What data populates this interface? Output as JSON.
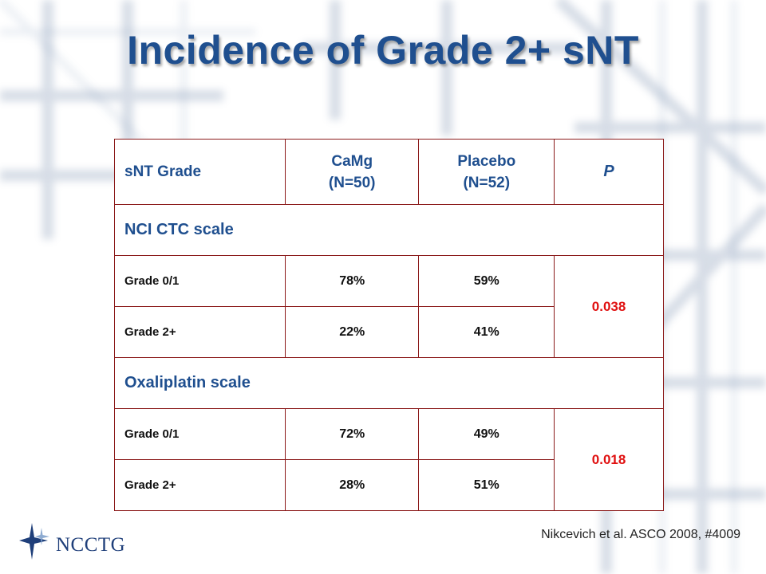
{
  "title": "Incidence of Grade 2+ sNT",
  "table": {
    "header": {
      "col1": "sNT Grade",
      "col2_line1": "CaMg",
      "col2_line2": "(N=50)",
      "col3_line1": "Placebo",
      "col3_line2": "(N=52)",
      "col4": "P"
    },
    "sections": [
      {
        "label": "NCI CTC scale",
        "p_value": "0.038",
        "rows": [
          {
            "grade": "Grade 0/1",
            "camg": "78%",
            "placebo": "59%"
          },
          {
            "grade": "Grade 2+",
            "camg": "22%",
            "placebo": "41%"
          }
        ]
      },
      {
        "label": "Oxaliplatin scale",
        "p_value": "0.018",
        "rows": [
          {
            "grade": "Grade 0/1",
            "camg": "72%",
            "placebo": "49%"
          },
          {
            "grade": "Grade 2+",
            "camg": "28%",
            "placebo": "51%"
          }
        ]
      }
    ]
  },
  "logo": {
    "text": "NCCTG",
    "icon": "star-icon"
  },
  "citation": "Nikcevich et al. ASCO 2008, #4009",
  "colors": {
    "title": "#1f4f8f",
    "header_text": "#1f4f8f",
    "border": "#8b1a1a",
    "p_value": "#e01010",
    "body_text": "#111111"
  }
}
